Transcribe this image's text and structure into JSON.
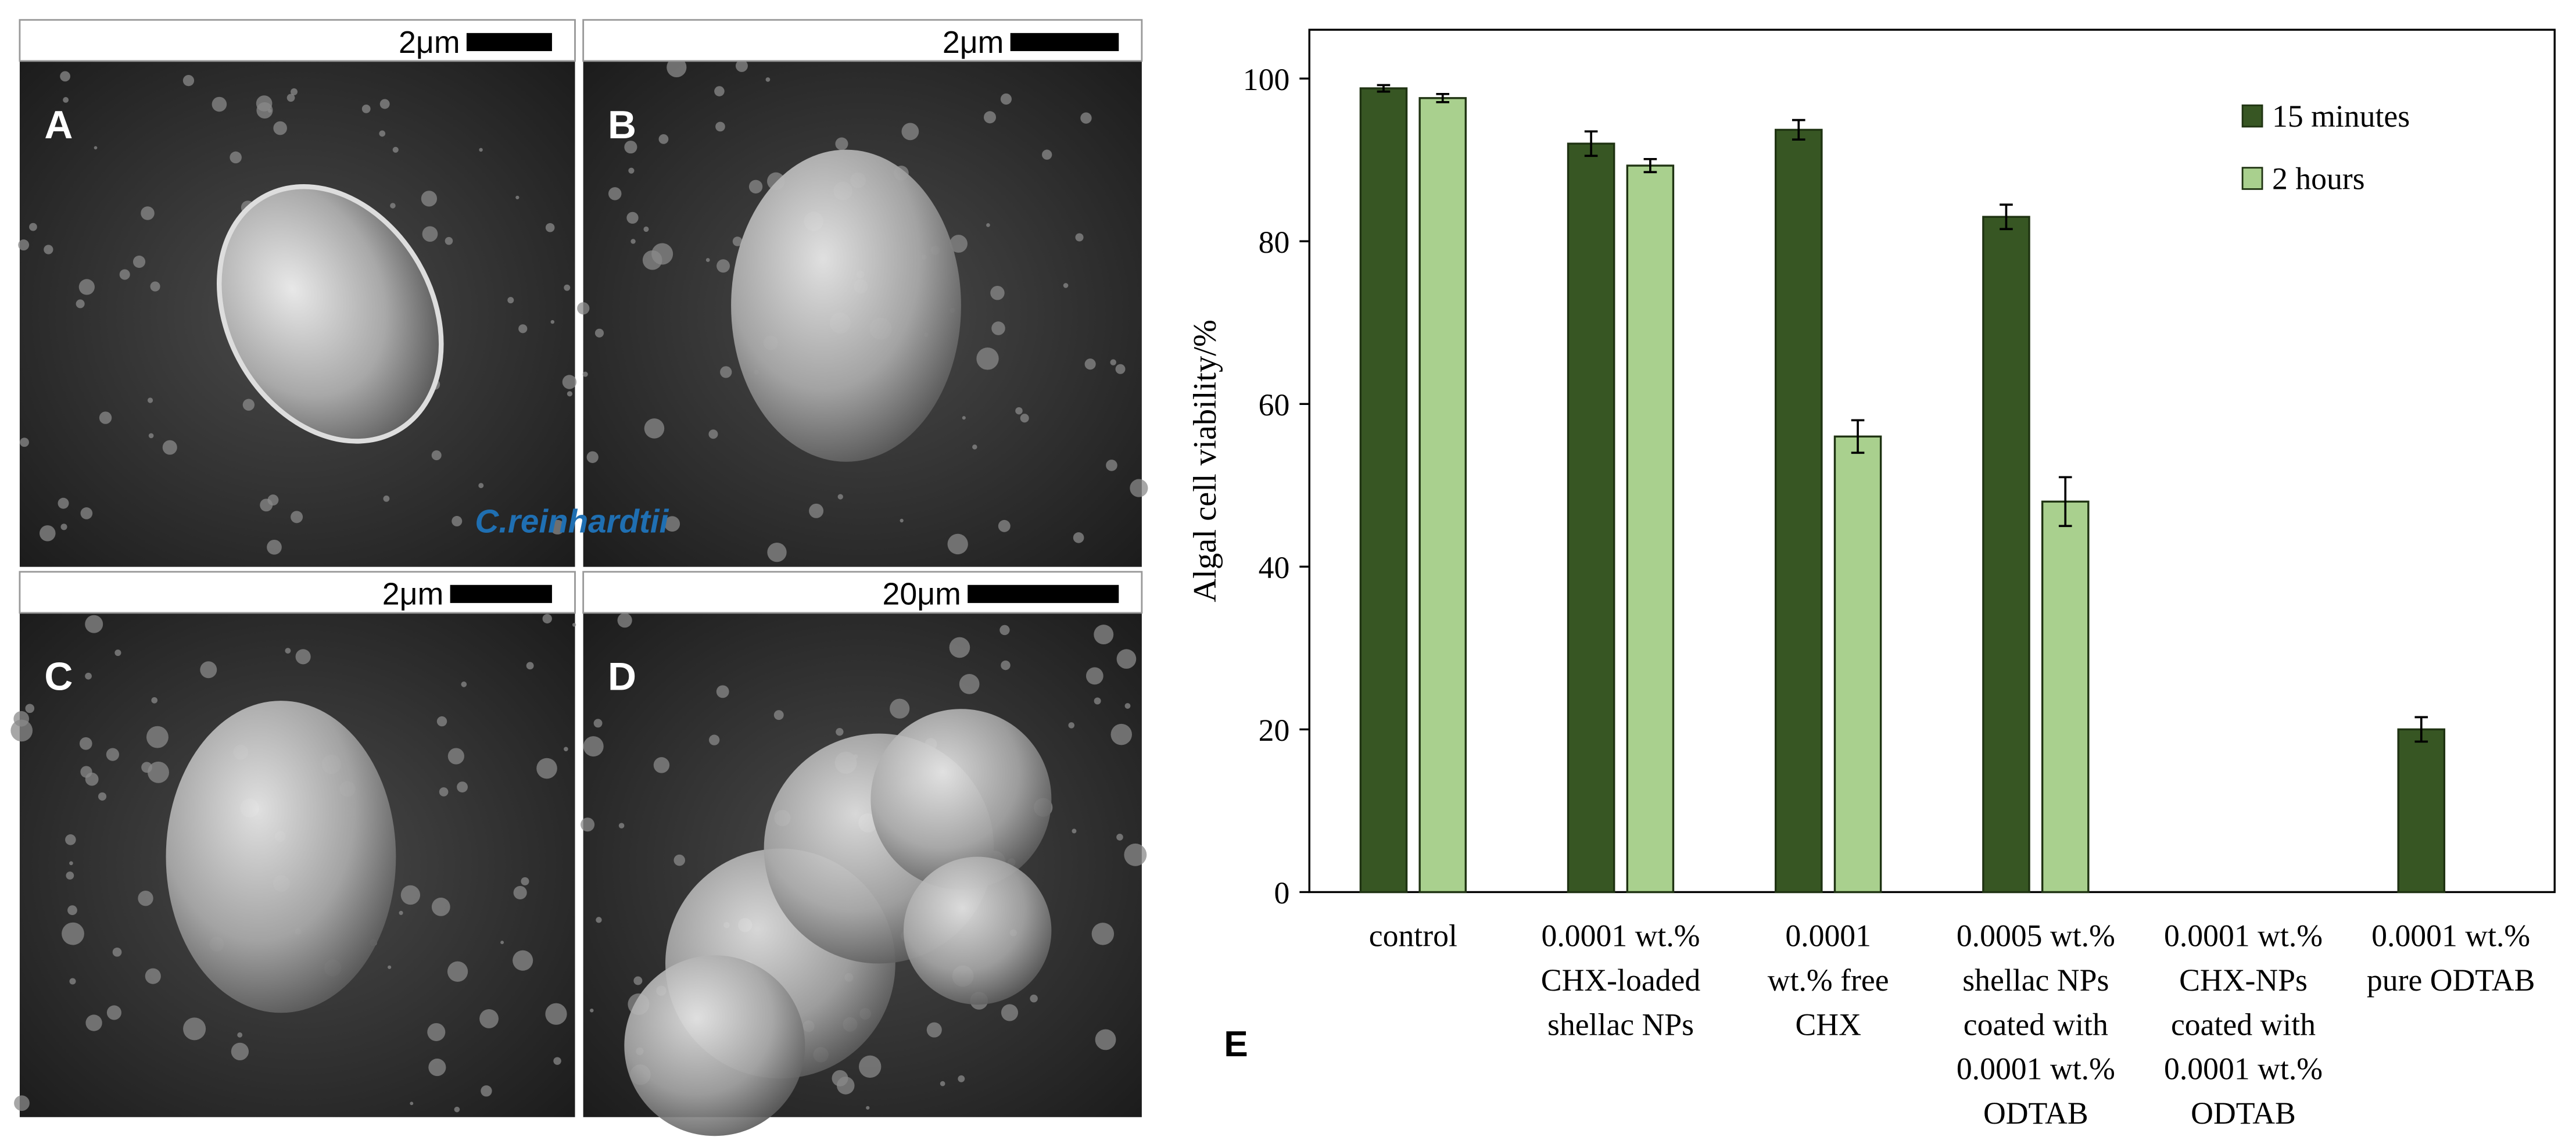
{
  "panels": [
    {
      "label": "A",
      "scale": "2μm"
    },
    {
      "label": "B",
      "scale": "2μm"
    },
    {
      "label": "C",
      "scale": "2μm"
    },
    {
      "label": "D",
      "scale": "20μm"
    }
  ],
  "organism": "C.reinhardtii",
  "chart_data": {
    "type": "bar",
    "panel_label": "E",
    "y_label": "Algal cell viability/%",
    "categories": [
      [
        "control"
      ],
      [
        "0.0001 wt.%",
        "CHX-loaded",
        "shellac NPs"
      ],
      [
        "0.0001",
        "wt.% free",
        "CHX"
      ],
      [
        "0.0005 wt.%",
        "shellac NPs",
        "coated with",
        "0.0001 wt.%",
        "ODTAB"
      ],
      [
        "0.0001 wt.%",
        "CHX-NPs",
        "coated with",
        "0.0001 wt.%",
        "ODTAB"
      ],
      [
        "0.0001 wt.%",
        "pure ODTAB"
      ]
    ],
    "series": [
      {
        "name": "15 minutes",
        "color": "#375623",
        "values": [
          98.8,
          92,
          93.7,
          83,
          null,
          20
        ],
        "errors": [
          0.4,
          1.5,
          1.2,
          1.5,
          null,
          1.5
        ]
      },
      {
        "name": "2 hours",
        "color": "#a9d08e",
        "values": [
          97.6,
          89.3,
          56,
          48,
          null,
          null
        ],
        "errors": [
          0.5,
          0.8,
          2,
          3,
          null,
          null
        ]
      }
    ],
    "ylim": [
      0,
      106
    ],
    "yticks": [
      0,
      20,
      40,
      60,
      80,
      100
    ],
    "legend": "upper right"
  }
}
